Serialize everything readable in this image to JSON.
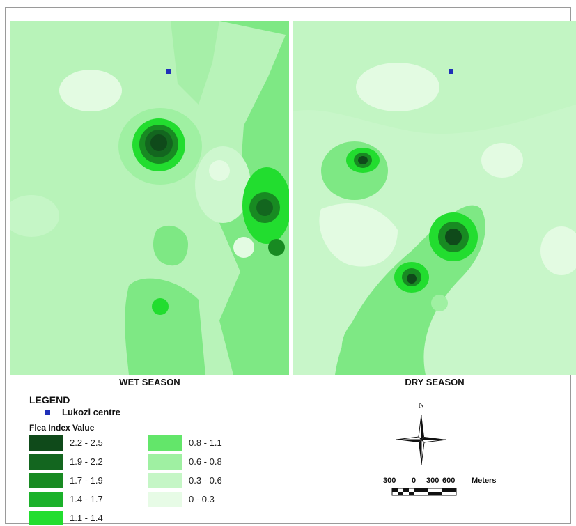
{
  "maps": [
    {
      "id": "wet",
      "label": "WET SEASON"
    },
    {
      "id": "dry",
      "label": "DRY SEASON"
    }
  ],
  "legend": {
    "title": "LEGEND",
    "centre_label": "Lukozi centre",
    "centre_color": "#1f2fb8",
    "flea_title": "Flea Index Value",
    "classes": [
      {
        "label": "2.2 - 2.5",
        "color": "#0f4a1a"
      },
      {
        "label": "1.9 - 2.2",
        "color": "#13661f"
      },
      {
        "label": "1.7 - 1.9",
        "color": "#188a22"
      },
      {
        "label": "1.4 - 1.7",
        "color": "#1bb12a"
      },
      {
        "label": "1.1 - 1.4",
        "color": "#22dd2f"
      },
      {
        "label": "0.8 - 1.1",
        "color": "#63e66a"
      },
      {
        "label": "0.6 - 0.8",
        "color": "#9ff0a2"
      },
      {
        "label": "0.3 - 0.6",
        "color": "#c5f6c6"
      },
      {
        "label": "0 - 0.3",
        "color": "#e7fbe6"
      }
    ]
  },
  "compass": {
    "north_label": "N"
  },
  "scale": {
    "ticks": [
      "300",
      "0",
      "300",
      "600"
    ],
    "unit": "Meters"
  }
}
